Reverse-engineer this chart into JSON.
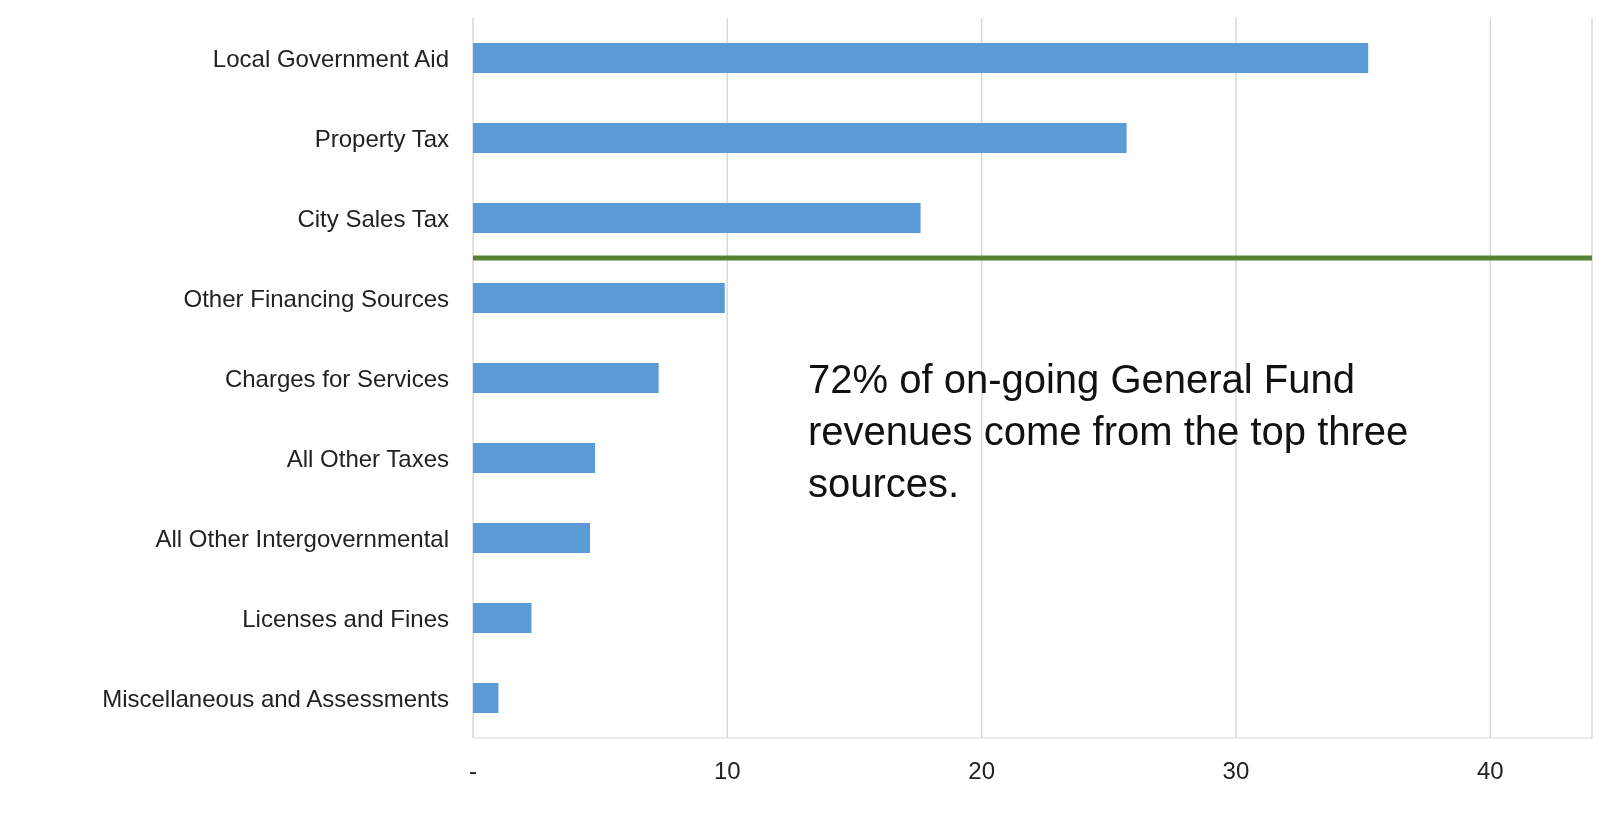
{
  "chart_data": {
    "type": "bar",
    "orientation": "horizontal",
    "categories": [
      "Local Government Aid",
      "Property Tax",
      "City Sales Tax",
      "Other Financing Sources",
      "Charges for Services",
      "All Other Taxes",
      "All Other Intergovernmental",
      "Licenses and Fines",
      "Miscellaneous and Assessments"
    ],
    "values": [
      35.2,
      25.7,
      17.6,
      9.9,
      7.3,
      4.8,
      4.6,
      2.3,
      1.0
    ],
    "color": "#5b9bd5",
    "xlim": [
      0,
      44
    ],
    "xticks": [
      {
        "value": 0,
        "label": "-"
      },
      10,
      20,
      30,
      40
    ],
    "grid": "x",
    "ref_lines": [
      {
        "axis": "y",
        "value": "City Sales Tax",
        "color": "#548235"
      }
    ],
    "annotations": [
      "72% of on-going General Fund revenues come from the top three sources."
    ]
  }
}
